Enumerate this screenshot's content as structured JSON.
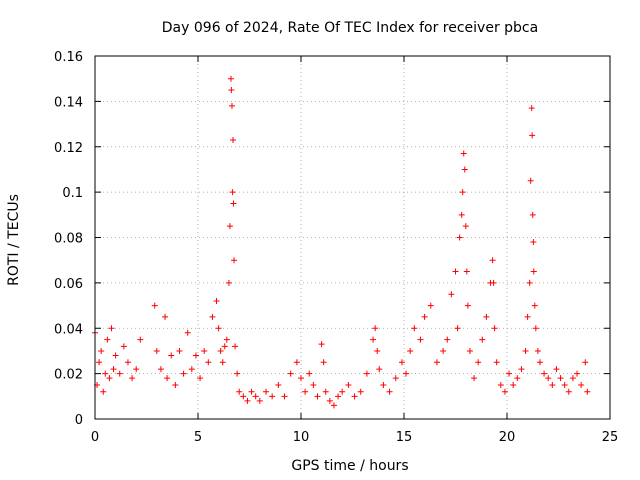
{
  "chart_data": {
    "type": "scatter",
    "title": "Day 096 of 2024, Rate Of TEC Index for receiver pbca",
    "xlabel": "GPS time / hours",
    "ylabel": "ROTI / TECUs",
    "xlim": [
      0,
      25
    ],
    "ylim": [
      0,
      0.16
    ],
    "x_ticks": [
      0,
      5,
      10,
      15,
      20,
      25
    ],
    "x_tick_labels": [
      "0",
      "5",
      "10",
      "15",
      "20",
      "25"
    ],
    "y_ticks": [
      0,
      0.02,
      0.04,
      0.06,
      0.08,
      0.1,
      0.12,
      0.14,
      0.16
    ],
    "y_tick_labels": [
      "0",
      "0.02",
      "0.04",
      "0.06",
      "0.08",
      "0.1",
      "0.12",
      "0.14",
      "0.16"
    ],
    "grid": true,
    "marker": "+",
    "color": "#ff0000",
    "series": [
      {
        "name": "ROTI",
        "x": [
          0.0,
          0.1,
          0.2,
          0.3,
          0.4,
          0.5,
          0.6,
          0.7,
          0.8,
          0.9,
          1.0,
          1.2,
          1.4,
          1.6,
          1.8,
          2.0,
          2.2,
          2.9,
          3.0,
          3.2,
          3.4,
          3.5,
          3.7,
          3.9,
          4.1,
          4.3,
          4.5,
          4.7,
          4.9,
          5.1,
          5.3,
          5.5,
          5.7,
          5.9,
          6.0,
          6.1,
          6.2,
          6.3,
          6.4,
          6.5,
          6.55,
          6.6,
          6.62,
          6.65,
          6.68,
          6.7,
          6.72,
          6.75,
          6.8,
          6.9,
          7.0,
          7.2,
          7.4,
          7.6,
          7.8,
          8.0,
          8.3,
          8.6,
          8.9,
          9.2,
          9.5,
          9.8,
          10.0,
          10.2,
          10.4,
          10.6,
          10.8,
          11.0,
          11.1,
          11.2,
          11.4,
          11.6,
          11.8,
          12.0,
          12.3,
          12.6,
          12.9,
          13.2,
          13.5,
          13.6,
          13.7,
          13.8,
          14.0,
          14.3,
          14.6,
          14.9,
          15.1,
          15.3,
          15.5,
          15.8,
          16.0,
          16.3,
          16.6,
          16.9,
          17.1,
          17.3,
          17.5,
          17.6,
          17.7,
          17.8,
          17.85,
          17.9,
          17.95,
          18.0,
          18.05,
          18.1,
          18.2,
          18.4,
          18.6,
          18.8,
          19.0,
          19.2,
          19.3,
          19.35,
          19.4,
          19.5,
          19.7,
          19.9,
          20.1,
          20.3,
          20.5,
          20.7,
          20.9,
          21.0,
          21.1,
          21.15,
          21.2,
          21.22,
          21.25,
          21.28,
          21.3,
          21.35,
          21.4,
          21.5,
          21.6,
          21.8,
          22.0,
          22.2,
          22.4,
          22.6,
          22.8,
          23.0,
          23.2,
          23.4,
          23.6,
          23.8,
          23.9
        ],
        "y": [
          0.038,
          0.015,
          0.025,
          0.03,
          0.012,
          0.02,
          0.035,
          0.018,
          0.04,
          0.022,
          0.028,
          0.02,
          0.032,
          0.025,
          0.018,
          0.022,
          0.035,
          0.05,
          0.03,
          0.022,
          0.045,
          0.018,
          0.028,
          0.015,
          0.03,
          0.02,
          0.038,
          0.022,
          0.028,
          0.018,
          0.03,
          0.025,
          0.045,
          0.052,
          0.04,
          0.03,
          0.025,
          0.032,
          0.035,
          0.06,
          0.085,
          0.15,
          0.145,
          0.138,
          0.1,
          0.123,
          0.095,
          0.07,
          0.032,
          0.02,
          0.012,
          0.01,
          0.008,
          0.012,
          0.01,
          0.008,
          0.012,
          0.01,
          0.015,
          0.01,
          0.02,
          0.025,
          0.018,
          0.012,
          0.02,
          0.015,
          0.01,
          0.033,
          0.025,
          0.012,
          0.008,
          0.006,
          0.01,
          0.012,
          0.015,
          0.01,
          0.012,
          0.02,
          0.035,
          0.04,
          0.03,
          0.022,
          0.015,
          0.012,
          0.018,
          0.025,
          0.02,
          0.03,
          0.04,
          0.035,
          0.045,
          0.05,
          0.025,
          0.03,
          0.035,
          0.055,
          0.065,
          0.04,
          0.08,
          0.09,
          0.1,
          0.117,
          0.11,
          0.085,
          0.065,
          0.05,
          0.03,
          0.018,
          0.025,
          0.035,
          0.045,
          0.06,
          0.07,
          0.06,
          0.04,
          0.025,
          0.015,
          0.012,
          0.02,
          0.015,
          0.018,
          0.022,
          0.03,
          0.045,
          0.06,
          0.105,
          0.137,
          0.125,
          0.09,
          0.078,
          0.065,
          0.05,
          0.04,
          0.03,
          0.025,
          0.02,
          0.018,
          0.015,
          0.022,
          0.018,
          0.015,
          0.012,
          0.018,
          0.02,
          0.015,
          0.025,
          0.012
        ]
      }
    ]
  }
}
